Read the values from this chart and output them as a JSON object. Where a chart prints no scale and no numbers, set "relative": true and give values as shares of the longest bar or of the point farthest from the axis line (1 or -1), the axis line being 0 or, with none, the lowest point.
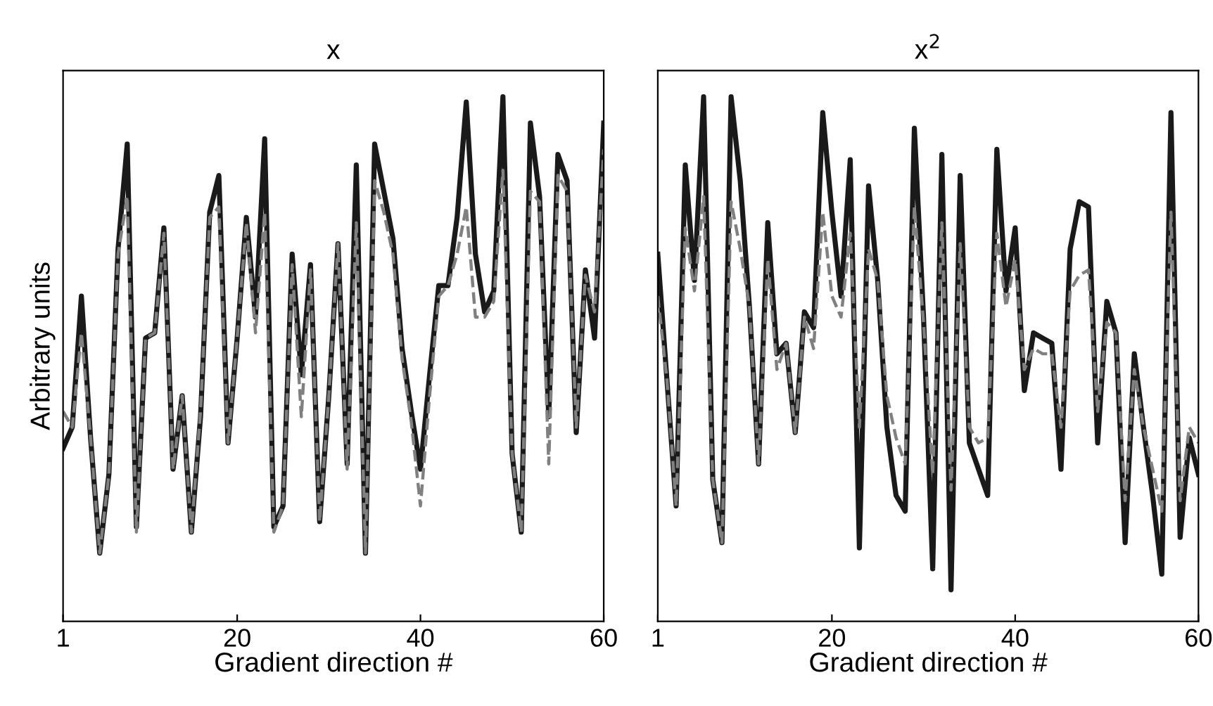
{
  "chart_data": [
    {
      "type": "line",
      "title": "x",
      "xlabel": "Gradient direction #",
      "ylabel": "Arbitrary units",
      "relative": true,
      "xlim": [
        1,
        60
      ],
      "xticks": [
        1,
        20,
        40,
        60
      ],
      "grid": false,
      "x": [
        1,
        2,
        3,
        4,
        5,
        6,
        7,
        8,
        9,
        10,
        11,
        12,
        13,
        14,
        15,
        16,
        17,
        18,
        19,
        20,
        21,
        22,
        23,
        24,
        25,
        26,
        27,
        28,
        29,
        30,
        31,
        32,
        33,
        34,
        35,
        36,
        37,
        38,
        39,
        40,
        41,
        42,
        43,
        44,
        45,
        46,
        47,
        48,
        49,
        50,
        51,
        52,
        53,
        54,
        55,
        56,
        57,
        58,
        59,
        60
      ],
      "series": [
        {
          "color": "#1a1a1a",
          "line_style": "solid",
          "values": [
            0.33,
            0.37,
            0.62,
            0.35,
            0.13,
            0.28,
            0.71,
            0.91,
            0.18,
            0.54,
            0.55,
            0.75,
            0.29,
            0.43,
            0.17,
            0.39,
            0.78,
            0.85,
            0.34,
            0.54,
            0.77,
            0.58,
            0.92,
            0.18,
            0.22,
            0.7,
            0.47,
            0.68,
            0.19,
            0.43,
            0.72,
            0.3,
            0.87,
            0.13,
            0.91,
            0.82,
            0.73,
            0.52,
            0.4,
            0.29,
            0.47,
            0.64,
            0.64,
            0.77,
            0.99,
            0.7,
            0.59,
            0.63,
            1.0,
            0.32,
            0.17,
            0.95,
            0.81,
            0.39,
            0.89,
            0.84,
            0.36,
            0.67,
            0.54,
            0.95
          ]
        },
        {
          "color": "#808080",
          "line_style": "dashed",
          "values": [
            0.4,
            0.37,
            0.55,
            0.35,
            0.13,
            0.28,
            0.7,
            0.81,
            0.17,
            0.54,
            0.55,
            0.74,
            0.29,
            0.43,
            0.17,
            0.4,
            0.77,
            0.79,
            0.34,
            0.54,
            0.76,
            0.55,
            0.78,
            0.17,
            0.22,
            0.68,
            0.39,
            0.67,
            0.19,
            0.43,
            0.72,
            0.29,
            0.76,
            0.13,
            0.84,
            0.78,
            0.7,
            0.5,
            0.38,
            0.22,
            0.43,
            0.62,
            0.64,
            0.7,
            0.79,
            0.58,
            0.58,
            0.61,
            0.86,
            0.32,
            0.17,
            0.82,
            0.8,
            0.3,
            0.85,
            0.82,
            0.37,
            0.66,
            0.59,
            0.9
          ]
        }
      ]
    },
    {
      "type": "line",
      "title": "x$^{2}$",
      "xlabel": "Gradient direction #",
      "relative": true,
      "xlim": [
        1,
        60
      ],
      "xticks": [
        1,
        20,
        40,
        60
      ],
      "grid": false,
      "x": [
        1,
        2,
        3,
        4,
        5,
        6,
        7,
        8,
        9,
        10,
        11,
        12,
        13,
        14,
        15,
        16,
        17,
        18,
        19,
        20,
        21,
        22,
        23,
        24,
        25,
        26,
        27,
        28,
        29,
        30,
        31,
        32,
        33,
        34,
        35,
        36,
        37,
        38,
        39,
        40,
        41,
        42,
        43,
        44,
        45,
        46,
        47,
        48,
        49,
        50,
        51,
        52,
        53,
        54,
        55,
        56,
        57,
        58,
        59,
        60
      ],
      "series": [
        {
          "color": "#1a1a1a",
          "line_style": "solid",
          "values": [
            0.7,
            0.46,
            0.22,
            0.87,
            0.65,
            1.0,
            0.27,
            0.15,
            1.0,
            0.84,
            0.6,
            0.3,
            0.76,
            0.51,
            0.53,
            0.36,
            0.59,
            0.56,
            0.97,
            0.78,
            0.62,
            0.88,
            0.14,
            0.83,
            0.65,
            0.37,
            0.24,
            0.21,
            0.94,
            0.58,
            0.1,
            0.89,
            0.06,
            0.85,
            0.34,
            0.29,
            0.24,
            0.9,
            0.63,
            0.75,
            0.44,
            0.55,
            0.54,
            0.53,
            0.29,
            0.71,
            0.8,
            0.79,
            0.34,
            0.61,
            0.55,
            0.15,
            0.51,
            0.37,
            0.24,
            0.09,
            0.97,
            0.16,
            0.35,
            0.28
          ]
        },
        {
          "color": "#808080",
          "line_style": "dashed",
          "values": [
            0.62,
            0.46,
            0.22,
            0.75,
            0.63,
            0.81,
            0.27,
            0.15,
            0.8,
            0.71,
            0.6,
            0.3,
            0.69,
            0.48,
            0.53,
            0.36,
            0.58,
            0.52,
            0.78,
            0.62,
            0.58,
            0.74,
            0.37,
            0.71,
            0.65,
            0.43,
            0.35,
            0.3,
            0.79,
            0.57,
            0.28,
            0.76,
            0.25,
            0.72,
            0.37,
            0.34,
            0.35,
            0.74,
            0.6,
            0.69,
            0.48,
            0.52,
            0.51,
            0.51,
            0.37,
            0.63,
            0.66,
            0.67,
            0.4,
            0.57,
            0.55,
            0.23,
            0.48,
            0.37,
            0.29,
            0.21,
            0.78,
            0.23,
            0.37,
            0.34
          ]
        }
      ]
    }
  ]
}
